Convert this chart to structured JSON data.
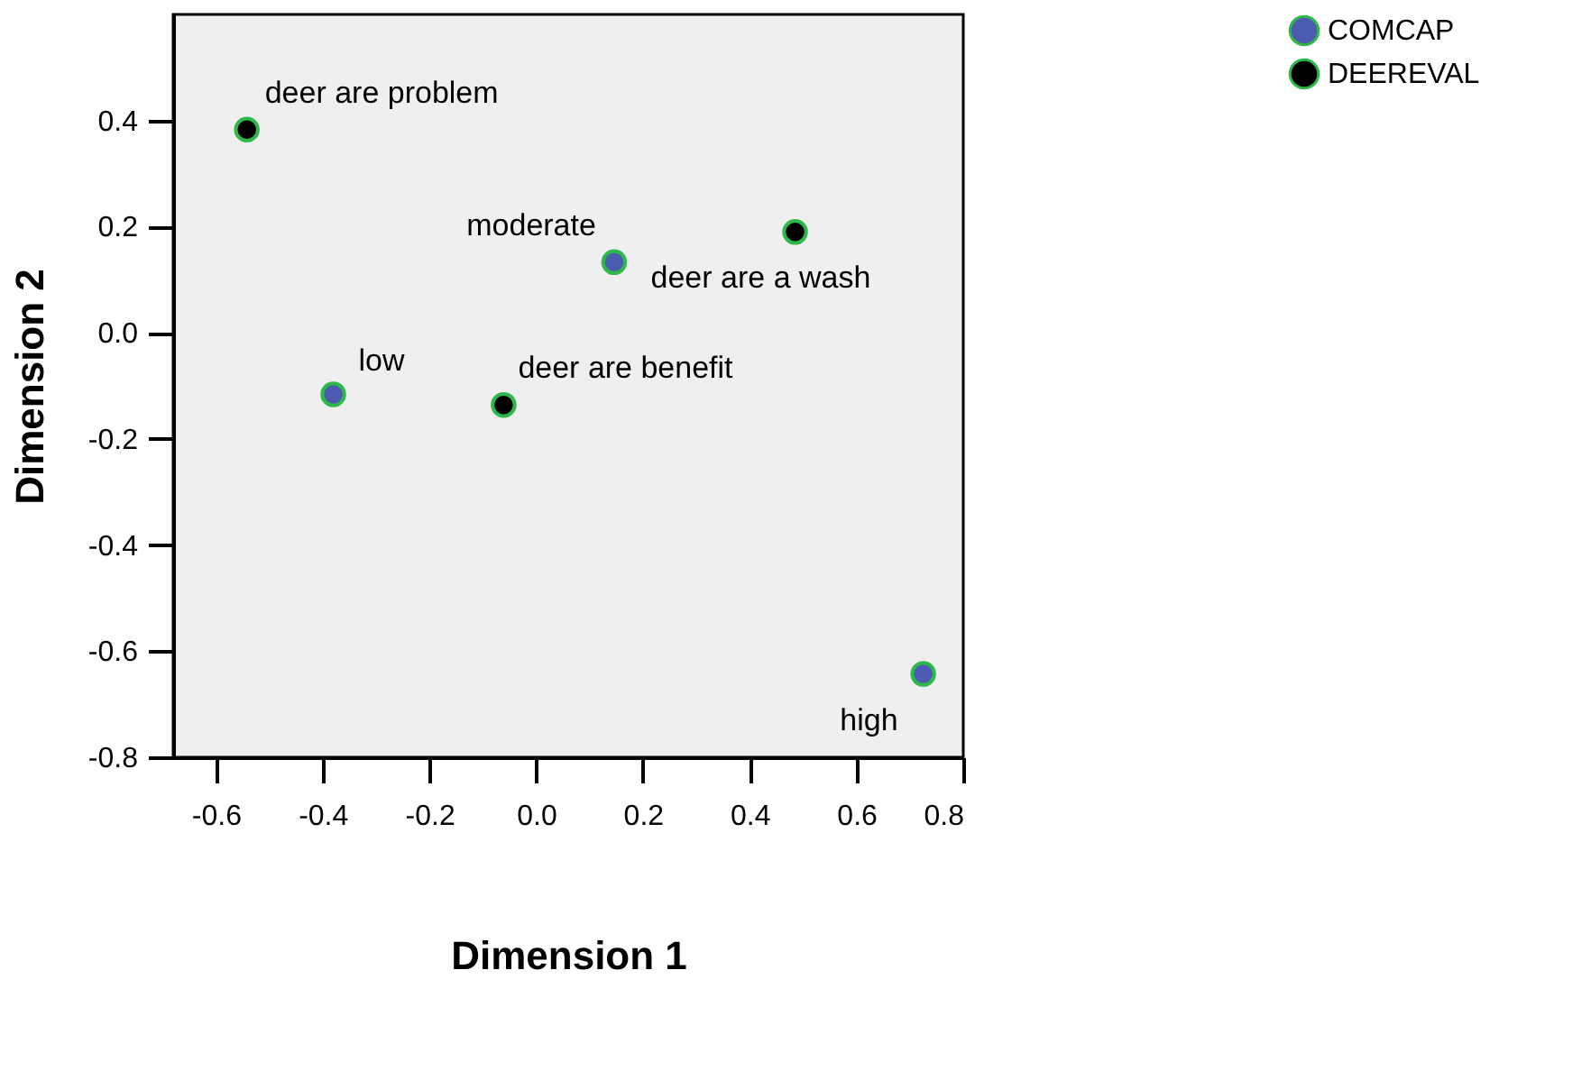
{
  "chart_data": {
    "type": "scatter",
    "xlabel": "Dimension 1",
    "ylabel": "Dimension 2",
    "xlim": [
      -0.68,
      0.8
    ],
    "ylim": [
      -0.8,
      0.6
    ],
    "xticks": [
      -0.6,
      -0.4,
      -0.2,
      {
        "value": 0,
        "label": "0.0"
      },
      0.2,
      0.4,
      0.6,
      0.8
    ],
    "yticks": [
      -0.8,
      -0.6,
      -0.4,
      -0.2,
      {
        "value": 0,
        "label": "0.0"
      },
      0.2,
      0.4
    ],
    "series": [
      {
        "name": "COMCAP",
        "color": "#4b5cae",
        "x": [
          0.146,
          -0.38,
          0.725
        ],
        "values": [
          0.133,
          -0.116,
          -0.643
        ]
      },
      {
        "name": "DEEREVAL",
        "color": "#000000",
        "x": [
          -0.542,
          0.485,
          -0.061
        ],
        "values": [
          0.383,
          0.19,
          -0.136
        ]
      }
    ],
    "annotations": [
      {
        "text": "moderate",
        "x": 0.146,
        "y": 0.133
      },
      {
        "text": "low",
        "x": -0.38,
        "y": -0.116
      },
      {
        "text": "high",
        "x": 0.725,
        "y": -0.643
      },
      {
        "text": "deer are problem",
        "x": -0.542,
        "y": 0.383
      },
      {
        "text": "deer are a wash",
        "x": 0.485,
        "y": 0.19
      },
      {
        "text": "deer are benefit",
        "x": -0.061,
        "y": -0.136
      }
    ],
    "grid": false,
    "legend": "top right",
    "marker": "circle"
  }
}
